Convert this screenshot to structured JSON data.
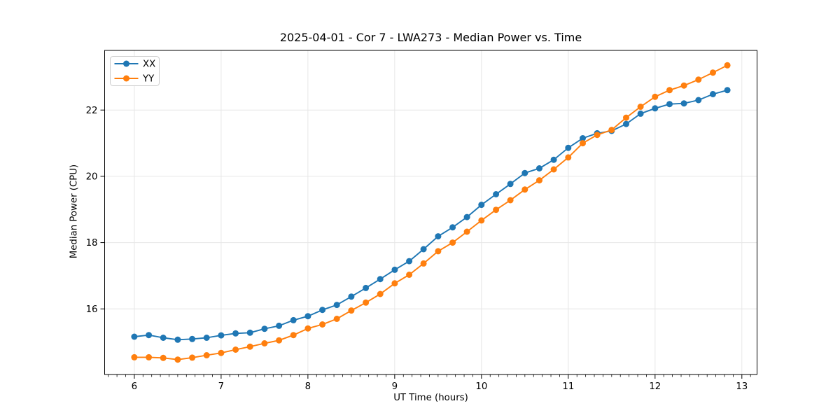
{
  "chart_data": {
    "type": "line",
    "title": "2025-04-01 - Cor 7 - LWA273 - Median Power vs. Time",
    "xlabel": "UT Time (hours)",
    "ylabel": "Median Power (CPU)",
    "xlim": [
      5.658,
      13.175
    ],
    "ylim": [
      14.02,
      23.8
    ],
    "x_ticks": [
      6,
      7,
      8,
      9,
      10,
      11,
      12,
      13
    ],
    "x_tick_labels": [
      "6",
      "7",
      "8",
      "9",
      "10",
      "11",
      "12",
      "13"
    ],
    "x_minor_step": 0.1,
    "y_ticks": [
      16,
      18,
      20,
      22
    ],
    "y_tick_labels": [
      "16",
      "18",
      "20",
      "22"
    ],
    "grid": true,
    "grid_color": "#e6e6e6",
    "spine_color": "#000000",
    "text_color": "#000000",
    "legend_position": "upper-left",
    "x": [
      6.0,
      6.167,
      6.333,
      6.5,
      6.667,
      6.833,
      7.0,
      7.167,
      7.333,
      7.5,
      7.667,
      7.833,
      8.0,
      8.167,
      8.333,
      8.5,
      8.667,
      8.833,
      9.0,
      9.167,
      9.333,
      9.5,
      9.667,
      9.833,
      10.0,
      10.167,
      10.333,
      10.5,
      10.667,
      10.833,
      11.0,
      11.167,
      11.333,
      11.5,
      11.667,
      11.833,
      12.0,
      12.167,
      12.333,
      12.5,
      12.667,
      12.833
    ],
    "series": [
      {
        "name": "XX",
        "color": "#1f77b4",
        "values": [
          15.16,
          15.21,
          15.13,
          15.07,
          15.09,
          15.13,
          15.2,
          15.26,
          15.28,
          15.4,
          15.49,
          15.66,
          15.78,
          15.97,
          16.12,
          16.37,
          16.63,
          16.9,
          17.18,
          17.44,
          17.8,
          18.19,
          18.46,
          18.77,
          19.14,
          19.46,
          19.77,
          20.1,
          20.24,
          20.5,
          20.86,
          21.15,
          21.3,
          21.37,
          21.58,
          21.89,
          22.05,
          22.18,
          22.2,
          22.3,
          22.48,
          22.6
        ]
      },
      {
        "name": "YY",
        "color": "#ff7f0e",
        "values": [
          14.54,
          14.54,
          14.52,
          14.47,
          14.53,
          14.6,
          14.67,
          14.77,
          14.86,
          14.96,
          15.05,
          15.21,
          15.41,
          15.53,
          15.7,
          15.95,
          16.19,
          16.45,
          16.77,
          17.03,
          17.37,
          17.74,
          18.0,
          18.33,
          18.67,
          18.99,
          19.28,
          19.6,
          19.88,
          20.21,
          20.57,
          21.0,
          21.25,
          21.4,
          21.77,
          22.1,
          22.4,
          22.6,
          22.74,
          22.92,
          23.13,
          23.35
        ]
      }
    ]
  }
}
